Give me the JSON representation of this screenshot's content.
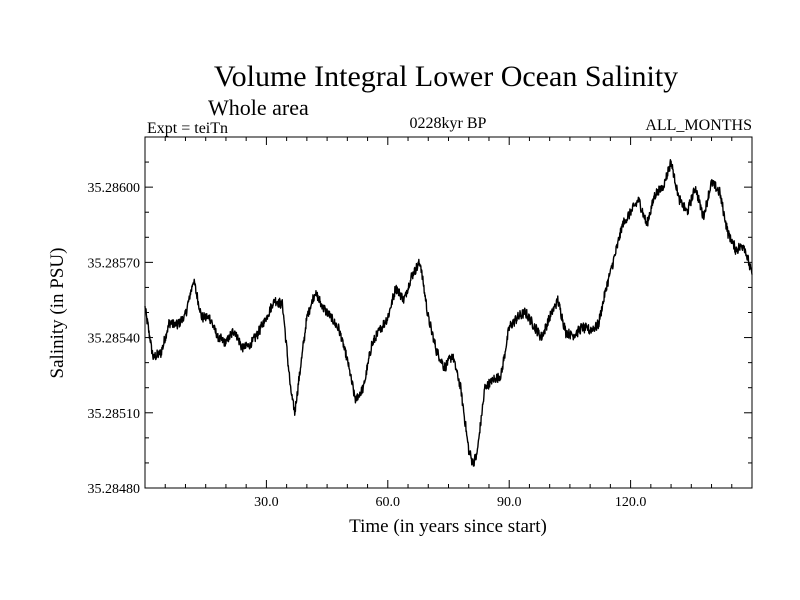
{
  "chart_data": {
    "type": "line",
    "title": "Volume Integral Lower Ocean Salinity",
    "subtitle": "Whole area",
    "header_left": "Expt = teiTn",
    "header_center": "0228kyr BP",
    "header_right": "ALL_MONTHS",
    "xlabel": "Time (in years since start)",
    "ylabel": "Salinity (in PSU)",
    "xlim": [
      0,
      150
    ],
    "ylim": [
      35.2848,
      35.2862
    ],
    "xticks": [
      30,
      60,
      90,
      120
    ],
    "xtick_labels": [
      "30.0",
      "60.0",
      "90.0",
      "120.0"
    ],
    "xminor_step": 5,
    "yticks": [
      35.2848,
      35.2851,
      35.2854,
      35.2857,
      35.286
    ],
    "ytick_labels": [
      "35.28480",
      "35.28510",
      "35.28540",
      "35.28570",
      "35.28600"
    ],
    "yminor_step": 0.0001,
    "series": [
      {
        "name": "salinity",
        "color": "#000000",
        "x": [
          0,
          2,
          4,
          6,
          8,
          10,
          12,
          14,
          16,
          18,
          20,
          22,
          24,
          26,
          28,
          30,
          32,
          34,
          36,
          37,
          40,
          42,
          44,
          46,
          48,
          50,
          52,
          54,
          56,
          58,
          60,
          62,
          64,
          66,
          68,
          70,
          72,
          74,
          76,
          78,
          80,
          81,
          82,
          84,
          86,
          88,
          90,
          92,
          94,
          96,
          98,
          100,
          102,
          104,
          106,
          108,
          110,
          112,
          114,
          116,
          118,
          120,
          122,
          124,
          126,
          128,
          130,
          132,
          134,
          136,
          138,
          140,
          142,
          144,
          146,
          148,
          150
        ],
        "values": [
          35.28552,
          35.28532,
          35.28534,
          35.28546,
          35.28545,
          35.28549,
          35.28563,
          35.28548,
          35.28548,
          35.2854,
          35.28538,
          35.28543,
          35.28536,
          35.28537,
          35.28542,
          35.28548,
          35.28555,
          35.28553,
          35.28519,
          35.2851,
          35.28548,
          35.28558,
          35.28552,
          35.28548,
          35.28543,
          35.28531,
          35.28515,
          35.2852,
          35.28537,
          35.28543,
          35.28548,
          35.2856,
          35.28555,
          35.28565,
          35.2857,
          35.28548,
          35.28535,
          35.28528,
          35.28533,
          35.2852,
          35.28495,
          35.2849,
          35.28493,
          35.2852,
          35.28523,
          35.28525,
          35.28544,
          35.28548,
          35.2855,
          35.28545,
          35.2854,
          35.28548,
          35.28555,
          35.28542,
          35.28541,
          35.28544,
          35.28543,
          35.28545,
          35.2856,
          35.28572,
          35.28585,
          35.2859,
          35.28595,
          35.28585,
          35.28597,
          35.286,
          35.2861,
          35.28595,
          35.2859,
          35.286,
          35.28588,
          35.28602,
          35.28598,
          35.28582,
          35.28575,
          35.28577,
          35.28565
        ]
      }
    ]
  }
}
